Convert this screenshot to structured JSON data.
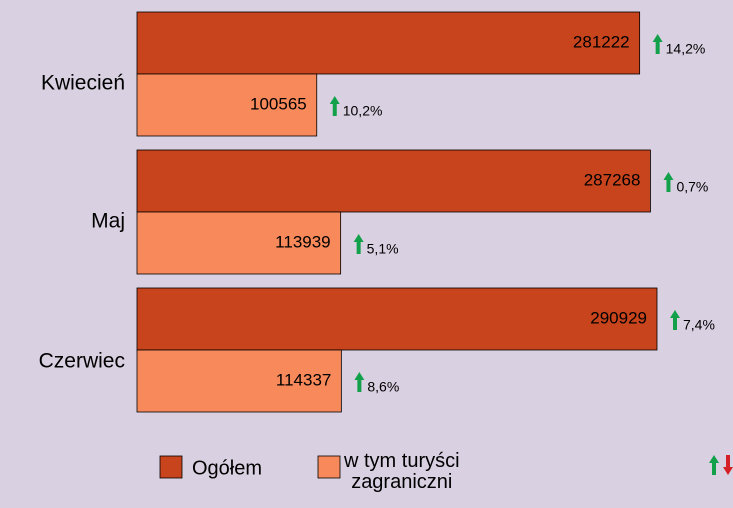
{
  "chart_data": {
    "type": "hbar",
    "categories": [
      "Kwiecień",
      "Maj",
      "Czerwiec"
    ],
    "series": [
      {
        "name": "Ogółem",
        "color": "#c8441c",
        "values": [
          281222,
          287268,
          290929
        ],
        "changes": [
          14.2,
          0.7,
          7.4
        ],
        "change_labels": [
          "14,2%",
          "0,7%",
          "7,4%"
        ]
      },
      {
        "name": "w tym turyści\nzagraniczni",
        "color": "#f7895a",
        "values": [
          100565,
          113939,
          114337
        ],
        "changes": [
          10.2,
          5.1,
          8.6
        ],
        "change_labels": [
          "10,2%",
          "5,1%",
          "8,6%"
        ]
      }
    ]
  }
}
